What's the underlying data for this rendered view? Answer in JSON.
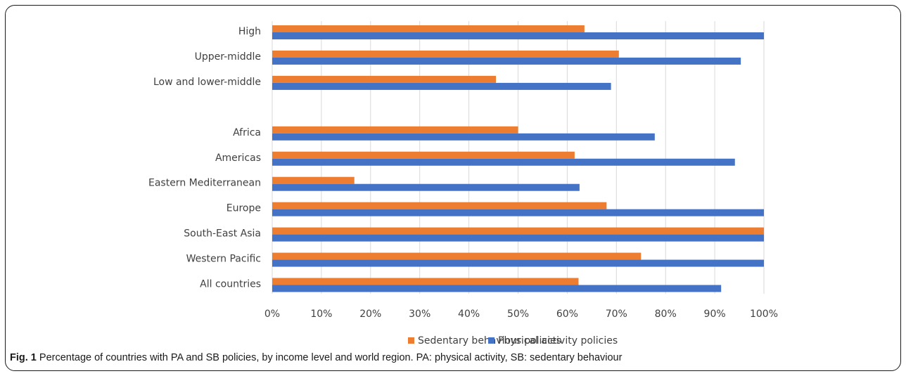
{
  "caption": {
    "label": "Fig. 1",
    "text": "Percentage of countries with PA and SB policies, by income level and world region. PA: physical activity, SB: sedentary behaviour"
  },
  "colors": {
    "sedentary": "#ED7D31",
    "physical": "#4472C4",
    "grid": "#d9d9d9"
  },
  "chart_data": {
    "type": "bar",
    "orientation": "horizontal",
    "categories": [
      "High",
      "Upper-middle",
      "Low and lower-middle",
      "",
      "Africa",
      "Americas",
      "Eastern Mediterranean",
      "Europe",
      "South-East Asia",
      "Western Pacific",
      "All countries"
    ],
    "series": [
      {
        "name": "Sedentary behaviour policies",
        "values": [
          63.5,
          70.5,
          45.5,
          null,
          50,
          61.5,
          16.7,
          68,
          100,
          75,
          62.3
        ]
      },
      {
        "name": "Physical activity policies",
        "values": [
          100,
          95.3,
          68.9,
          null,
          77.8,
          94.1,
          62.5,
          100,
          100,
          100,
          91.3
        ]
      }
    ],
    "xlim": [
      0,
      100
    ],
    "xticks": [
      "0%",
      "10%",
      "20%",
      "30%",
      "40%",
      "50%",
      "60%",
      "70%",
      "80%",
      "90%",
      "100%"
    ],
    "grid": true,
    "legend": "bottom-center"
  }
}
